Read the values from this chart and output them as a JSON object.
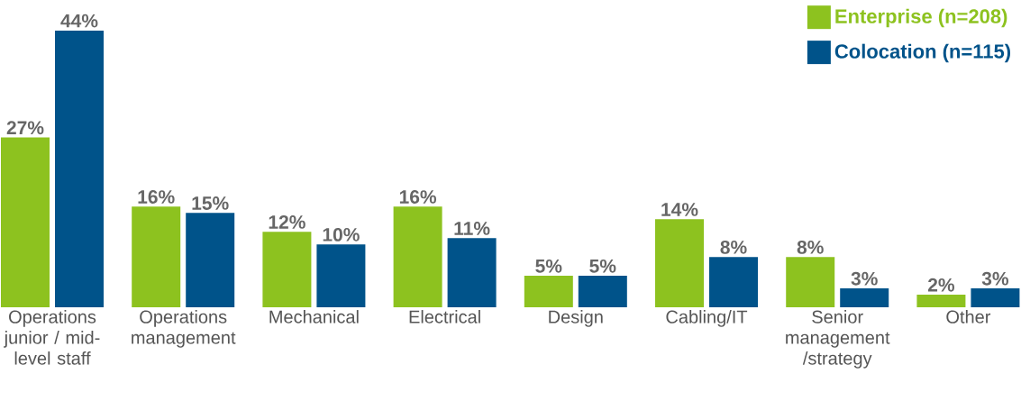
{
  "chart_data": {
    "type": "bar",
    "categories": [
      "Operations junior / mid-level staff",
      "Operations management",
      "Mechanical",
      "Electrical",
      "Design",
      "Cabling/IT",
      "Senior management /strategy",
      "Other"
    ],
    "series": [
      {
        "name": "Enterprise (n=208)",
        "color": "#8dc21f",
        "values": [
          27,
          16,
          12,
          16,
          5,
          14,
          8,
          2
        ],
        "value_labels": [
          "27%",
          "16%",
          "12%",
          "16%",
          "5%",
          "14%",
          "8%",
          "2%"
        ]
      },
      {
        "name": "Colocation (n=115)",
        "color": "#00538a",
        "values": [
          44,
          15,
          10,
          11,
          5,
          8,
          3,
          3
        ],
        "value_labels": [
          "44%",
          "15%",
          "10%",
          "11%",
          "5%",
          "8%",
          "3%",
          "3%"
        ]
      }
    ],
    "legend": "top right"
  }
}
